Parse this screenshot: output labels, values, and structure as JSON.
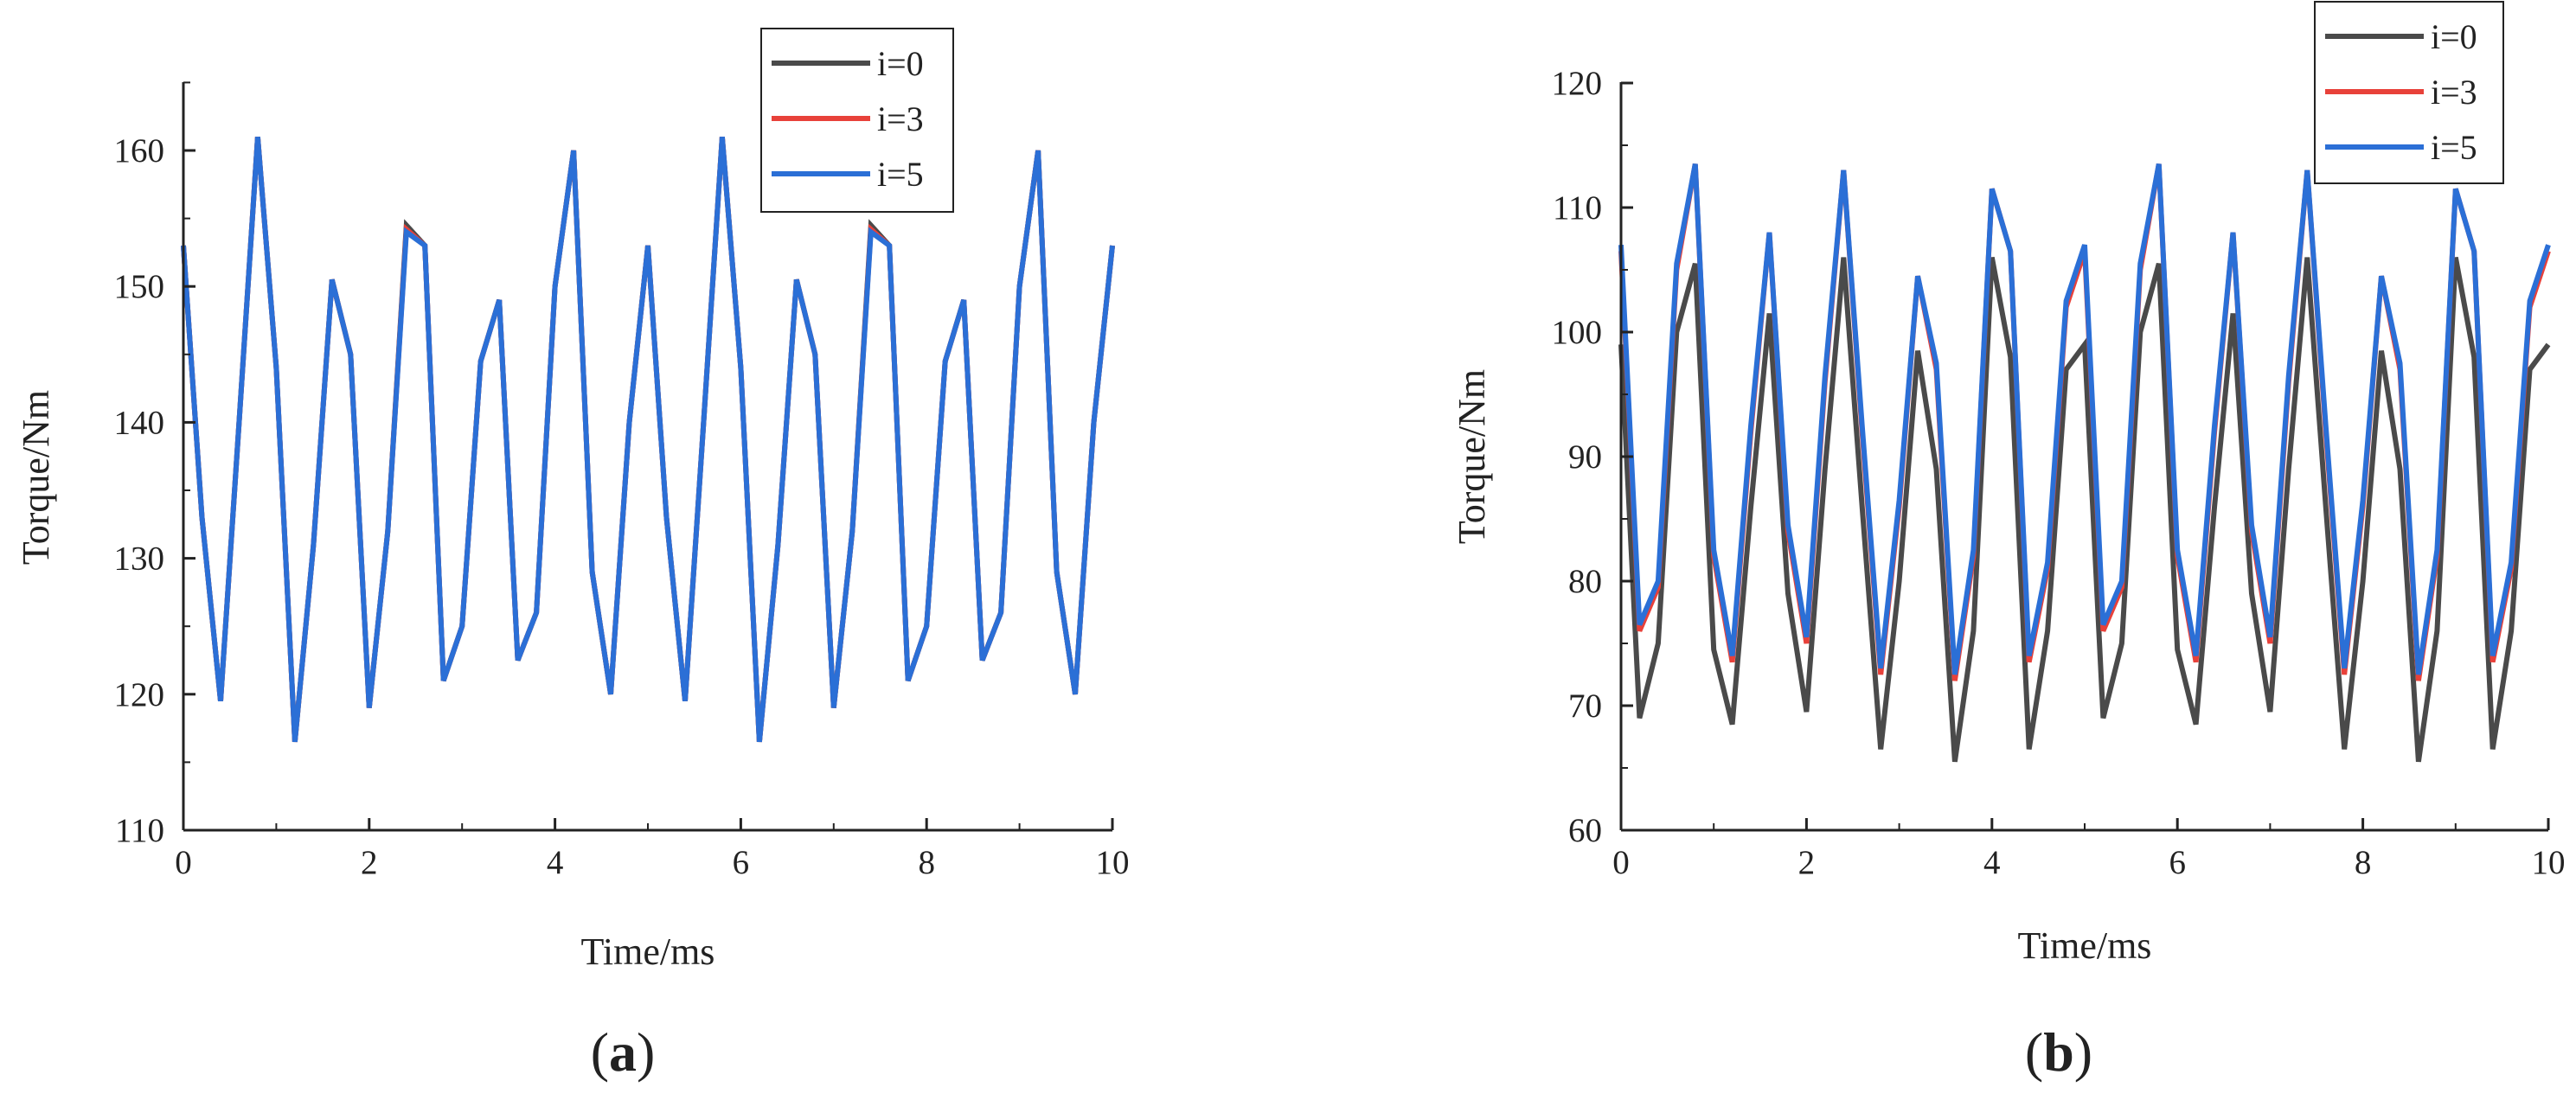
{
  "chart_data": [
    {
      "type": "line",
      "panel_label": "(a)",
      "panel_letter": "a",
      "xlabel": "Time/ms",
      "ylabel": "Torque/Nm",
      "xlim": [
        0,
        10
      ],
      "ylim": [
        110,
        165
      ],
      "xticks": [
        0,
        2,
        4,
        6,
        8,
        10
      ],
      "yticks": [
        110,
        120,
        130,
        140,
        150,
        160
      ],
      "grid": false,
      "legend_position": "top-right",
      "x": [
        0,
        0.2,
        0.4,
        0.6,
        0.8,
        1.0,
        1.2,
        1.4,
        1.6,
        1.8,
        2.0,
        2.2,
        2.4,
        2.6,
        2.8,
        3.0,
        3.2,
        3.4,
        3.6,
        3.8,
        4.0,
        4.2,
        4.4,
        4.6,
        4.8,
        5.0,
        5.2,
        5.4,
        5.6,
        5.8,
        6.0,
        6.2,
        6.4,
        6.6,
        6.8,
        7.0,
        7.2,
        7.4,
        7.6,
        7.8,
        8.0,
        8.2,
        8.4,
        8.6,
        8.8,
        9.0,
        9.2,
        9.4,
        9.6,
        9.8,
        10.0
      ],
      "series": [
        {
          "name": "i=0",
          "color": "#4a4a4a",
          "values": [
            153,
            133,
            119.5,
            140,
            161,
            144,
            116.5,
            131,
            150.5,
            145,
            119,
            132,
            154.5,
            153,
            121,
            125,
            144.5,
            149,
            122.5,
            126,
            150,
            160,
            129,
            120,
            140,
            153,
            133,
            119.5,
            140,
            161,
            144,
            116.5,
            131,
            150.5,
            145,
            119,
            132,
            154.5,
            153,
            121,
            125,
            144.5,
            149,
            122.5,
            126,
            150,
            160,
            129,
            120,
            140,
            153
          ]
        },
        {
          "name": "i=3",
          "color": "#e8413a",
          "values": [
            153,
            133,
            119.5,
            140,
            161,
            144,
            116.5,
            131,
            150.5,
            145,
            119,
            132,
            154.2,
            153,
            121,
            125,
            144.5,
            149,
            122.5,
            126,
            150,
            160,
            129,
            120,
            140,
            153,
            133,
            119.5,
            140,
            161,
            144,
            116.5,
            131,
            150.5,
            145,
            119,
            132,
            154.2,
            153,
            121,
            125,
            144.5,
            149,
            122.5,
            126,
            150,
            160,
            129,
            120,
            140,
            153
          ]
        },
        {
          "name": "i=5",
          "color": "#2b6fd6",
          "values": [
            153,
            133,
            119.5,
            140,
            161,
            144,
            116.5,
            131,
            150.5,
            145,
            119,
            132,
            154,
            153,
            121,
            125,
            144.5,
            149,
            122.5,
            126,
            150,
            160,
            129,
            120,
            140,
            153,
            133,
            119.5,
            140,
            161,
            144,
            116.5,
            131,
            150.5,
            145,
            119,
            132,
            154,
            153,
            121,
            125,
            144.5,
            149,
            122.5,
            126,
            150,
            160,
            129,
            120,
            140,
            153
          ]
        }
      ]
    },
    {
      "type": "line",
      "panel_label": "(b)",
      "panel_letter": "b",
      "xlabel": "Time/ms",
      "ylabel": "Torque/Nm",
      "xlim": [
        0,
        10
      ],
      "ylim": [
        60,
        120
      ],
      "xticks": [
        0,
        2,
        4,
        6,
        8,
        10
      ],
      "yticks": [
        60,
        70,
        80,
        90,
        100,
        110,
        120
      ],
      "grid": false,
      "legend_position": "top-right",
      "x": [
        0,
        0.2,
        0.4,
        0.6,
        0.8,
        1.0,
        1.2,
        1.4,
        1.6,
        1.8,
        2.0,
        2.2,
        2.4,
        2.6,
        2.8,
        3.0,
        3.2,
        3.4,
        3.6,
        3.8,
        4.0,
        4.2,
        4.4,
        4.6,
        4.8,
        5.0,
        5.2,
        5.4,
        5.6,
        5.8,
        6.0,
        6.2,
        6.4,
        6.6,
        6.8,
        7.0,
        7.2,
        7.4,
        7.6,
        7.8,
        8.0,
        8.2,
        8.4,
        8.6,
        8.8,
        9.0,
        9.2,
        9.4,
        9.6,
        9.8,
        10.0
      ],
      "series": [
        {
          "name": "i=0",
          "color": "#4a4a4a",
          "values": [
            99,
            69,
            75,
            100,
            105.5,
            74.5,
            68.5,
            86,
            101.5,
            79,
            69.5,
            89,
            106,
            86,
            66.5,
            80,
            98.5,
            89,
            65.5,
            76,
            106,
            98,
            66.5,
            76,
            97,
            99,
            69,
            75,
            100,
            105.5,
            74.5,
            68.5,
            86,
            101.5,
            79,
            69.5,
            89,
            106,
            86,
            66.5,
            80,
            98.5,
            89,
            65.5,
            76,
            106,
            98,
            66.5,
            76,
            97,
            99
          ]
        },
        {
          "name": "i=3",
          "color": "#e8413a",
          "values": [
            106.5,
            76,
            79.5,
            105,
            113.5,
            82,
            73.5,
            92,
            108,
            84,
            75,
            96,
            113,
            92,
            72.5,
            86,
            104.5,
            97,
            72,
            82,
            111.5,
            106.5,
            73.5,
            81,
            102,
            106.5,
            76,
            79.5,
            105,
            113.5,
            82,
            73.5,
            92,
            108,
            84,
            75,
            96,
            113,
            92,
            72.5,
            86,
            104.5,
            97,
            72,
            82,
            111.5,
            106.5,
            73.5,
            81,
            102,
            106.5
          ]
        },
        {
          "name": "i=5",
          "color": "#2b6fd6",
          "values": [
            107,
            76.5,
            80,
            105.5,
            113.5,
            82.5,
            74,
            92.5,
            108,
            84.5,
            75.5,
            96.5,
            113,
            92.5,
            73,
            86.5,
            104.5,
            97.5,
            72.5,
            82.5,
            111.5,
            106.5,
            74,
            81.5,
            102.5,
            107,
            76.5,
            80,
            105.5,
            113.5,
            82.5,
            74,
            92.5,
            108,
            84.5,
            75.5,
            96.5,
            113,
            92.5,
            73,
            86.5,
            104.5,
            97.5,
            72.5,
            82.5,
            111.5,
            106.5,
            74,
            81.5,
            102.5,
            107
          ]
        }
      ]
    }
  ]
}
